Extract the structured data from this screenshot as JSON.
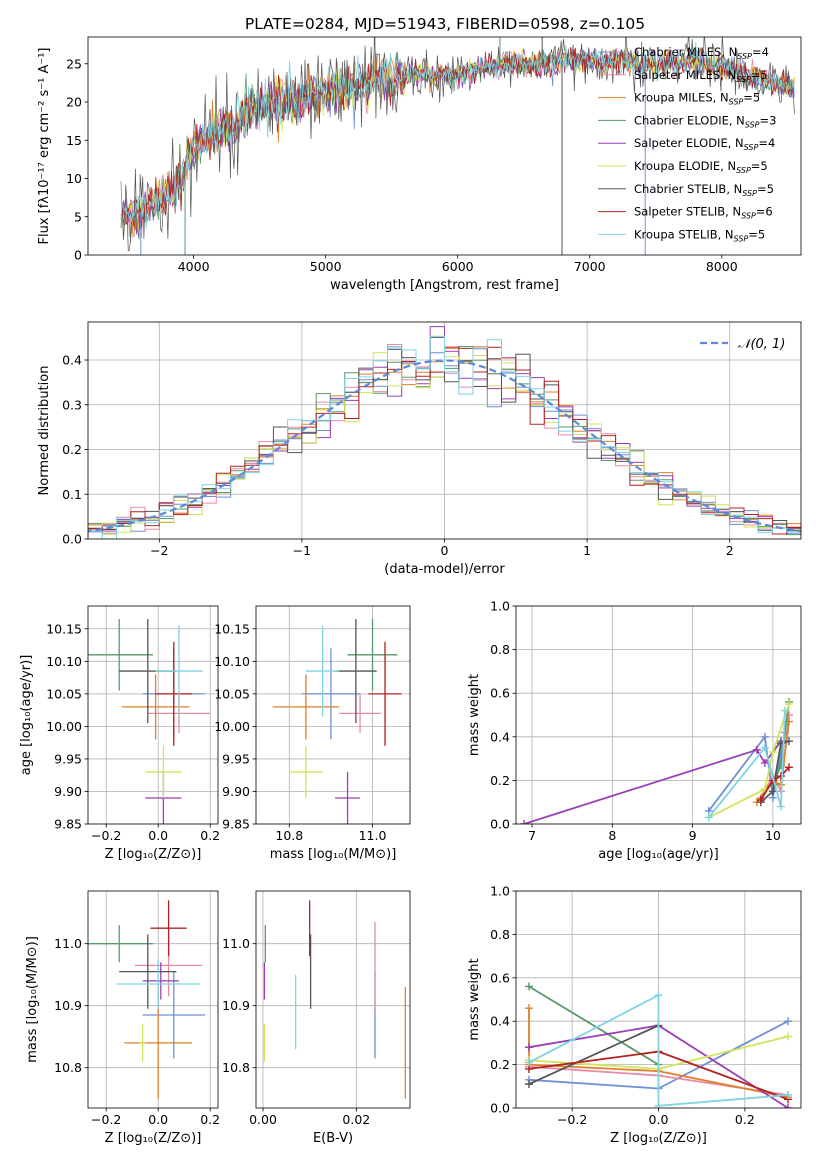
{
  "figure_title": "PLATE=0284, MJD=51943, FIBERID=0598, z=0.105",
  "colors": {
    "Chabrier MILES": "#6f8fd8",
    "Salpeter MILES": "#e88aa6",
    "Kroupa MILES": "#e0802a",
    "Chabrier ELODIE": "#5a9a6a",
    "Salpeter ELODIE": "#9b3fb5",
    "Kroupa ELODIE": "#d2e35a",
    "Chabrier STELIB": "#555555",
    "Salpeter STELIB": "#b52020",
    "Kroupa STELIB": "#7fd3e2"
  },
  "chart_data": [
    {
      "id": "spectrum",
      "type": "line",
      "title": "PLATE=0284, MJD=51943, FIBERID=0598, z=0.105",
      "xlabel": "wavelength [Angstrom, rest frame]",
      "ylabel": "Flux [fλ10⁻¹⁷ erg cm⁻² s⁻¹ A⁻¹]",
      "xlim": [
        3200,
        8600
      ],
      "ylim": [
        0,
        28.5
      ],
      "xticks": [
        4000,
        5000,
        6000,
        7000,
        8000
      ],
      "yticks": [
        0,
        5,
        10,
        15,
        20,
        25
      ],
      "grid": false,
      "legend_position": "right",
      "legend": [
        {
          "label": "Chabrier MILES, N",
          "sub": "SSP",
          "suffix": "=4"
        },
        {
          "label": "Salpeter MILES, N",
          "sub": "SSP",
          "suffix": "=5"
        },
        {
          "label": "Kroupa MILES, N",
          "sub": "SSP",
          "suffix": "=5"
        },
        {
          "label": "Chabrier ELODIE, N",
          "sub": "SSP",
          "suffix": "=3"
        },
        {
          "label": "Salpeter ELODIE, N",
          "sub": "SSP",
          "suffix": "=4"
        },
        {
          "label": "Kroupa ELODIE, N",
          "sub": "SSP",
          "suffix": "=5"
        },
        {
          "label": "Chabrier STELIB, N",
          "sub": "SSP",
          "suffix": "=5"
        },
        {
          "label": "Salpeter STELIB, N",
          "sub": "SSP",
          "suffix": "=6"
        },
        {
          "label": "Kroupa STELIB, N",
          "sub": "SSP",
          "suffix": "=5"
        }
      ],
      "continuum": {
        "x": [
          3450,
          3550,
          3650,
          3800,
          3900,
          3950,
          4000,
          4100,
          4200,
          4300,
          4400,
          4600,
          4800,
          5000,
          5200,
          5400,
          5600,
          5800,
          6000,
          6200,
          6400,
          6600,
          6800,
          7000,
          7200,
          7400,
          7600,
          7800,
          8000,
          8200,
          8400,
          8550
        ],
        "y": [
          5.8,
          5.2,
          6.2,
          8.0,
          9.5,
          12.5,
          14.0,
          15.5,
          17.0,
          16.5,
          19.0,
          20.0,
          20.5,
          21.5,
          22.0,
          23.0,
          23.5,
          23.5,
          23.5,
          24.5,
          25.0,
          25.0,
          25.5,
          25.5,
          25.5,
          25.0,
          25.0,
          25.5,
          24.5,
          23.5,
          22.5,
          22.0
        ]
      },
      "spikes": [
        {
          "x": 3600,
          "y": 0
        },
        {
          "x": 3935,
          "y": 0
        },
        {
          "x": 6790,
          "y": 0
        },
        {
          "x": 7420,
          "y": 0
        },
        {
          "x": 6320,
          "y": 28.5
        },
        {
          "x": 6640,
          "y": 28.5
        }
      ]
    },
    {
      "id": "residuals",
      "type": "histogram",
      "xlabel": "(data-model)/error",
      "ylabel": "Normed distribution",
      "xlim": [
        -2.5,
        2.5
      ],
      "ylim": [
        0,
        0.485
      ],
      "xticks": [
        -2,
        -1,
        0,
        1,
        2
      ],
      "yticks": [
        0.0,
        0.1,
        0.2,
        0.3,
        0.4
      ],
      "grid": true,
      "legend_position": "top-right",
      "legend": [
        "𝒩(0, 1)"
      ],
      "bin_width": 0.1,
      "reference_curve": {
        "name": "𝒩(0, 1)",
        "mean": 0,
        "sigma": 1,
        "color": "#5b8bd8"
      }
    },
    {
      "id": "age-vs-Z",
      "type": "errorbar",
      "xlabel": "Z [log₁₀(Z/Z⊙)]",
      "ylabel": "age  [log₁₀(age/yr)]",
      "xlim": [
        -0.27,
        0.23
      ],
      "ylim": [
        9.85,
        10.185
      ],
      "xticks": [
        -0.2,
        0.0,
        0.2
      ],
      "yticks": [
        9.85,
        9.9,
        9.95,
        10.0,
        10.05,
        10.1,
        10.15
      ],
      "grid": true,
      "points": [
        {
          "model": "Chabrier MILES",
          "x": 0.06,
          "xerr": 0.12,
          "y": 10.05,
          "yerr": 0.07
        },
        {
          "model": "Salpeter MILES",
          "x": 0.08,
          "xerr": 0.12,
          "y": 10.02,
          "yerr": 0.03
        },
        {
          "model": "Kroupa MILES",
          "x": -0.01,
          "xerr": 0.13,
          "y": 10.03,
          "yerr": 0.05
        },
        {
          "model": "Chabrier ELODIE",
          "x": -0.15,
          "xerr": 0.13,
          "y": 10.11,
          "yerr": 0.055
        },
        {
          "model": "Salpeter ELODIE",
          "x": 0.02,
          "xerr": 0.07,
          "y": 9.89,
          "yerr": 0.04
        },
        {
          "model": "Kroupa ELODIE",
          "x": 0.02,
          "xerr": 0.07,
          "y": 9.93,
          "yerr": 0.04
        },
        {
          "model": "Chabrier STELIB",
          "x": -0.04,
          "xerr": 0.11,
          "y": 10.085,
          "yerr": 0.08
        },
        {
          "model": "Salpeter STELIB",
          "x": 0.06,
          "xerr": 0.07,
          "y": 10.05,
          "yerr": 0.08
        },
        {
          "model": "Kroupa STELIB",
          "x": 0.08,
          "xerr": 0.09,
          "y": 10.085,
          "yerr": 0.07
        }
      ]
    },
    {
      "id": "age-vs-mass",
      "type": "errorbar",
      "xlabel": "mass [log₁₀(M/M⊙)]",
      "ylabel": "",
      "xlim": [
        10.72,
        11.09
      ],
      "ylim": [
        9.85,
        10.185
      ],
      "xticks": [
        10.8,
        11.0
      ],
      "yticks": [
        9.85,
        9.9,
        9.95,
        10.0,
        10.05,
        10.1,
        10.15
      ],
      "grid": true,
      "points": [
        {
          "model": "Chabrier MILES",
          "x": 10.9,
          "xerr": 0.07,
          "y": 10.05,
          "yerr": 0.07
        },
        {
          "model": "Salpeter MILES",
          "x": 10.97,
          "xerr": 0.05,
          "y": 10.02,
          "yerr": 0.03
        },
        {
          "model": "Kroupa MILES",
          "x": 10.84,
          "xerr": 0.08,
          "y": 10.03,
          "yerr": 0.05
        },
        {
          "model": "Chabrier ELODIE",
          "x": 11.0,
          "xerr": 0.06,
          "y": 10.11,
          "yerr": 0.055
        },
        {
          "model": "Salpeter ELODIE",
          "x": 10.94,
          "xerr": 0.03,
          "y": 9.89,
          "yerr": 0.04
        },
        {
          "model": "Kroupa ELODIE",
          "x": 10.84,
          "xerr": 0.04,
          "y": 9.93,
          "yerr": 0.04
        },
        {
          "model": "Chabrier STELIB",
          "x": 10.96,
          "xerr": 0.05,
          "y": 10.085,
          "yerr": 0.08
        },
        {
          "model": "Salpeter STELIB",
          "x": 11.03,
          "xerr": 0.04,
          "y": 10.05,
          "yerr": 0.08
        },
        {
          "model": "Kroupa STELIB",
          "x": 10.88,
          "xerr": 0.04,
          "y": 10.085,
          "yerr": 0.07
        }
      ]
    },
    {
      "id": "weight-vs-age",
      "type": "line",
      "xlabel": "age  [log₁₀(age/yr)]",
      "ylabel": "mass weight",
      "xlim": [
        6.8,
        10.35
      ],
      "ylim": [
        0,
        1.0
      ],
      "xticks": [
        7,
        8,
        9,
        10
      ],
      "yticks": [
        0.0,
        0.2,
        0.4,
        0.6,
        0.8,
        1.0
      ],
      "grid": true,
      "series": [
        {
          "model": "Chabrier MILES",
          "x": [
            9.2,
            9.9,
            10.0,
            10.15
          ],
          "y": [
            0.06,
            0.4,
            0.12,
            0.42
          ]
        },
        {
          "model": "Salpeter MILES",
          "x": [
            9.85,
            10.0,
            10.1,
            10.2
          ],
          "y": [
            0.12,
            0.22,
            0.15,
            0.5
          ]
        },
        {
          "model": "Kroupa MILES",
          "x": [
            9.8,
            10.0,
            10.1,
            10.2
          ],
          "y": [
            0.1,
            0.2,
            0.18,
            0.47
          ]
        },
        {
          "model": "Chabrier ELODIE",
          "x": [
            10.0,
            10.1,
            10.2
          ],
          "y": [
            0.18,
            0.27,
            0.56
          ]
        },
        {
          "model": "Salpeter ELODIE",
          "x": [
            6.9,
            9.8,
            9.9,
            10.1
          ],
          "y": [
            0.0,
            0.34,
            0.28,
            0.38
          ]
        },
        {
          "model": "Kroupa ELODIE",
          "x": [
            9.2,
            9.9,
            10.0,
            10.2
          ],
          "y": [
            0.03,
            0.16,
            0.33,
            0.55
          ]
        },
        {
          "model": "Chabrier STELIB",
          "x": [
            9.85,
            10.0,
            10.1,
            10.2
          ],
          "y": [
            0.1,
            0.15,
            0.37,
            0.38
          ]
        },
        {
          "model": "Salpeter STELIB",
          "x": [
            9.85,
            10.0,
            10.1,
            10.2
          ],
          "y": [
            0.11,
            0.2,
            0.22,
            0.26
          ]
        },
        {
          "model": "Kroupa STELIB",
          "x": [
            9.2,
            9.9,
            10.1,
            10.15
          ],
          "y": [
            0.03,
            0.35,
            0.08,
            0.52
          ]
        }
      ]
    },
    {
      "id": "mass-vs-Z",
      "type": "errorbar",
      "xlabel": "Z [log₁₀(Z/Z⊙)]",
      "ylabel": "mass [log₁₀(M/M⊙)]",
      "xlim": [
        -0.27,
        0.23
      ],
      "ylim": [
        10.735,
        11.085
      ],
      "xticks": [
        -0.2,
        0.0,
        0.2
      ],
      "yticks": [
        10.8,
        10.9,
        11.0
      ],
      "grid": true,
      "points": [
        {
          "model": "Chabrier MILES",
          "x": 0.06,
          "xerr": 0.12,
          "y": 10.885,
          "yerr": 0.07
        },
        {
          "model": "Salpeter MILES",
          "x": 0.04,
          "xerr": 0.13,
          "y": 10.965,
          "yerr": 0.05
        },
        {
          "model": "Kroupa MILES",
          "x": 0.0,
          "xerr": 0.13,
          "y": 10.84,
          "yerr": 0.09
        },
        {
          "model": "Chabrier ELODIE",
          "x": -0.15,
          "xerr": 0.13,
          "y": 11.0,
          "yerr": 0.03
        },
        {
          "model": "Salpeter ELODIE",
          "x": 0.01,
          "xerr": 0.07,
          "y": 10.94,
          "yerr": 0.03
        },
        {
          "model": "Kroupa ELODIE",
          "x": -0.06,
          "xerr": 0.01,
          "y": 10.84,
          "yerr": 0.03
        },
        {
          "model": "Chabrier STELIB",
          "x": -0.04,
          "xerr": 0.11,
          "y": 10.955,
          "yerr": 0.06
        },
        {
          "model": "Salpeter STELIB",
          "x": 0.04,
          "xerr": 0.07,
          "y": 11.025,
          "yerr": 0.045
        },
        {
          "model": "Kroupa STELIB",
          "x": 0.0,
          "xerr": 0.16,
          "y": 10.935,
          "yerr": 0.04
        }
      ]
    },
    {
      "id": "mass-vs-EBV",
      "type": "errorbar",
      "xlabel": "E(B-V)",
      "ylabel": "",
      "xlim": [
        -0.0015,
        0.0315
      ],
      "ylim": [
        10.735,
        11.085
      ],
      "xticks": [
        0.0,
        0.02
      ],
      "yticks": [
        10.8,
        10.9,
        11.0
      ],
      "grid": true,
      "points": [
        {
          "model": "Chabrier MILES",
          "x": 0.024,
          "xerr": 0,
          "y": 10.885,
          "yerr": 0.07
        },
        {
          "model": "Salpeter MILES",
          "x": 0.024,
          "xerr": 0,
          "y": 10.965,
          "yerr": 0.07
        },
        {
          "model": "Kroupa MILES",
          "x": 0.0305,
          "xerr": 0,
          "y": 10.84,
          "yerr": 0.09
        },
        {
          "model": "Chabrier ELODIE",
          "x": 0.0005,
          "xerr": 0,
          "y": 11.0,
          "yerr": 0.03
        },
        {
          "model": "Salpeter ELODIE",
          "x": 0.0003,
          "xerr": 0,
          "y": 10.94,
          "yerr": 0.03
        },
        {
          "model": "Kroupa ELODIE",
          "x": 0.0003,
          "xerr": 0,
          "y": 10.84,
          "yerr": 0.03
        },
        {
          "model": "Chabrier STELIB",
          "x": 0.0102,
          "xerr": 0,
          "y": 10.955,
          "yerr": 0.06
        },
        {
          "model": "Salpeter STELIB",
          "x": 0.01,
          "xerr": 0,
          "y": 11.025,
          "yerr": 0.045
        },
        {
          "model": "Kroupa STELIB",
          "x": 0.007,
          "xerr": 0,
          "y": 10.89,
          "yerr": 0.06
        }
      ]
    },
    {
      "id": "weight-vs-Z",
      "type": "line",
      "xlabel": "Z [log₁₀(Z/Z⊙)]",
      "ylabel": "mass weight",
      "xlim": [
        -0.33,
        0.33
      ],
      "ylim": [
        0,
        1.0
      ],
      "xticks": [
        -0.2,
        0.0,
        0.2
      ],
      "yticks": [
        0.0,
        0.2,
        0.4,
        0.6,
        0.8,
        1.0
      ],
      "grid": true,
      "series": [
        {
          "model": "Chabrier MILES",
          "x": [
            -0.3,
            0.0,
            0.3
          ],
          "y": [
            0.13,
            0.09,
            0.4
          ]
        },
        {
          "model": "Salpeter MILES",
          "x": [
            -0.3,
            0.0,
            0.3
          ],
          "y": [
            0.19,
            0.15,
            0.06
          ]
        },
        {
          "model": "Kroupa MILES",
          "x": [
            -0.3,
            -0.3,
            0.0,
            0.3
          ],
          "y": [
            0.46,
            0.2,
            0.17,
            0.05
          ]
        },
        {
          "model": "Chabrier ELODIE",
          "x": [
            -0.3,
            0.0
          ],
          "y": [
            0.56,
            0.2
          ]
        },
        {
          "model": "Salpeter ELODIE",
          "x": [
            -0.3,
            0.0,
            0.3
          ],
          "y": [
            0.28,
            0.38,
            0.0
          ]
        },
        {
          "model": "Kroupa ELODIE",
          "x": [
            -0.3,
            0.0,
            0.3
          ],
          "y": [
            0.22,
            0.18,
            0.33
          ]
        },
        {
          "model": "Chabrier STELIB",
          "x": [
            -0.3,
            0.0
          ],
          "y": [
            0.11,
            0.38
          ]
        },
        {
          "model": "Salpeter STELIB",
          "x": [
            -0.3,
            0.0,
            0.3
          ],
          "y": [
            0.18,
            0.26,
            0.04
          ]
        },
        {
          "model": "Kroupa STELIB",
          "x": [
            -0.3,
            0.0,
            0.0,
            0.3
          ],
          "y": [
            0.21,
            0.52,
            0.01,
            0.06
          ]
        }
      ]
    }
  ]
}
